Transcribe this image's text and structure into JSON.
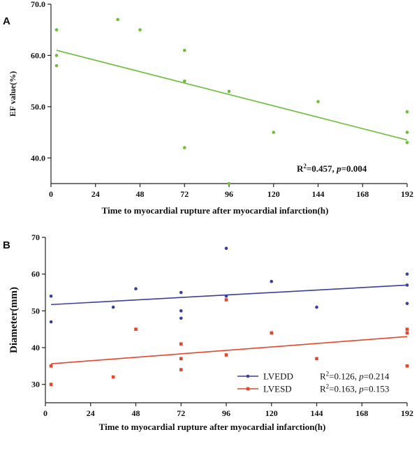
{
  "chart_data": [
    {
      "panel": "A",
      "type": "scatter",
      "xlabel": "Time to myocardial rupture after myocardial infarction(h)",
      "ylabel": "EF value(%)",
      "xlim": [
        0,
        192
      ],
      "ylim": [
        35,
        70
      ],
      "xticks": [
        0,
        24,
        48,
        72,
        96,
        120,
        144,
        168,
        192
      ],
      "yticks": [
        40.0,
        50.0,
        60.0,
        70.0
      ],
      "ytick_labels": [
        "40.0",
        "50.0",
        "60.0",
        "70.0"
      ],
      "grid": false,
      "colors": {
        "points": "#6ebe3c",
        "fit": "#6ebe3c"
      },
      "series": [
        {
          "points": [
            [
              3,
              65
            ],
            [
              3,
              60
            ],
            [
              3,
              58
            ],
            [
              36,
              67
            ],
            [
              48,
              65
            ],
            [
              72,
              61
            ],
            [
              72,
              55
            ],
            [
              72,
              42
            ],
            [
              96,
              53
            ],
            [
              96,
              35
            ],
            [
              120,
              45
            ],
            [
              144,
              51
            ],
            [
              192,
              49
            ],
            [
              192,
              45
            ],
            [
              192,
              43
            ]
          ],
          "fit": [
            [
              3,
              61.0
            ],
            [
              192,
              43.5
            ]
          ]
        }
      ],
      "annotation": {
        "r2_prefix": "R",
        "r2_exp": "2",
        "r2_value": "=0.457, ",
        "p_label": "p",
        "p_value": "=0.004"
      }
    },
    {
      "panel": "B",
      "type": "scatter",
      "xlabel": "Time to myocardial rupture after myocardial infarction(h)",
      "ylabel": "Diameter(mm)",
      "xlim": [
        0,
        192
      ],
      "ylim": [
        25,
        70
      ],
      "xticks": [
        0,
        24,
        48,
        72,
        96,
        120,
        144,
        168,
        192
      ],
      "yticks": [
        30,
        40,
        50,
        60,
        70
      ],
      "ytick_labels": [
        "30",
        "40",
        "50",
        "60",
        "70"
      ],
      "grid": false,
      "legend_position": "bottom-right",
      "series": [
        {
          "name": "LVEDD",
          "color": "#3a3f99",
          "marker": "circle",
          "points": [
            [
              3,
              54
            ],
            [
              3,
              47
            ],
            [
              36,
              51
            ],
            [
              48,
              56
            ],
            [
              72,
              55
            ],
            [
              72,
              50
            ],
            [
              72,
              48
            ],
            [
              96,
              67
            ],
            [
              96,
              54
            ],
            [
              120,
              58
            ],
            [
              144,
              51
            ],
            [
              192,
              60
            ],
            [
              192,
              57
            ],
            [
              192,
              52
            ]
          ],
          "fit": [
            [
              3,
              51.7
            ],
            [
              192,
              57.0
            ]
          ],
          "stats": {
            "r2_prefix": "R",
            "r2_exp": "2",
            "r2_value": "=0.126, ",
            "p_label": "p",
            "p_value": "=0.214"
          }
        },
        {
          "name": "LVESD",
          "color": "#e8452c",
          "marker": "square",
          "points": [
            [
              3,
              35
            ],
            [
              3,
              30
            ],
            [
              36,
              32
            ],
            [
              48,
              45
            ],
            [
              72,
              41
            ],
            [
              72,
              37
            ],
            [
              72,
              34
            ],
            [
              96,
              53
            ],
            [
              96,
              38
            ],
            [
              120,
              44
            ],
            [
              144,
              37
            ],
            [
              192,
              45
            ],
            [
              192,
              44
            ],
            [
              192,
              35
            ]
          ],
          "fit": [
            [
              3,
              35.6
            ],
            [
              192,
              43.0
            ]
          ],
          "stats": {
            "r2_prefix": "R",
            "r2_exp": "2",
            "r2_value": "=0.163, ",
            "p_label": "p",
            "p_value": "=0.153"
          }
        }
      ]
    }
  ]
}
